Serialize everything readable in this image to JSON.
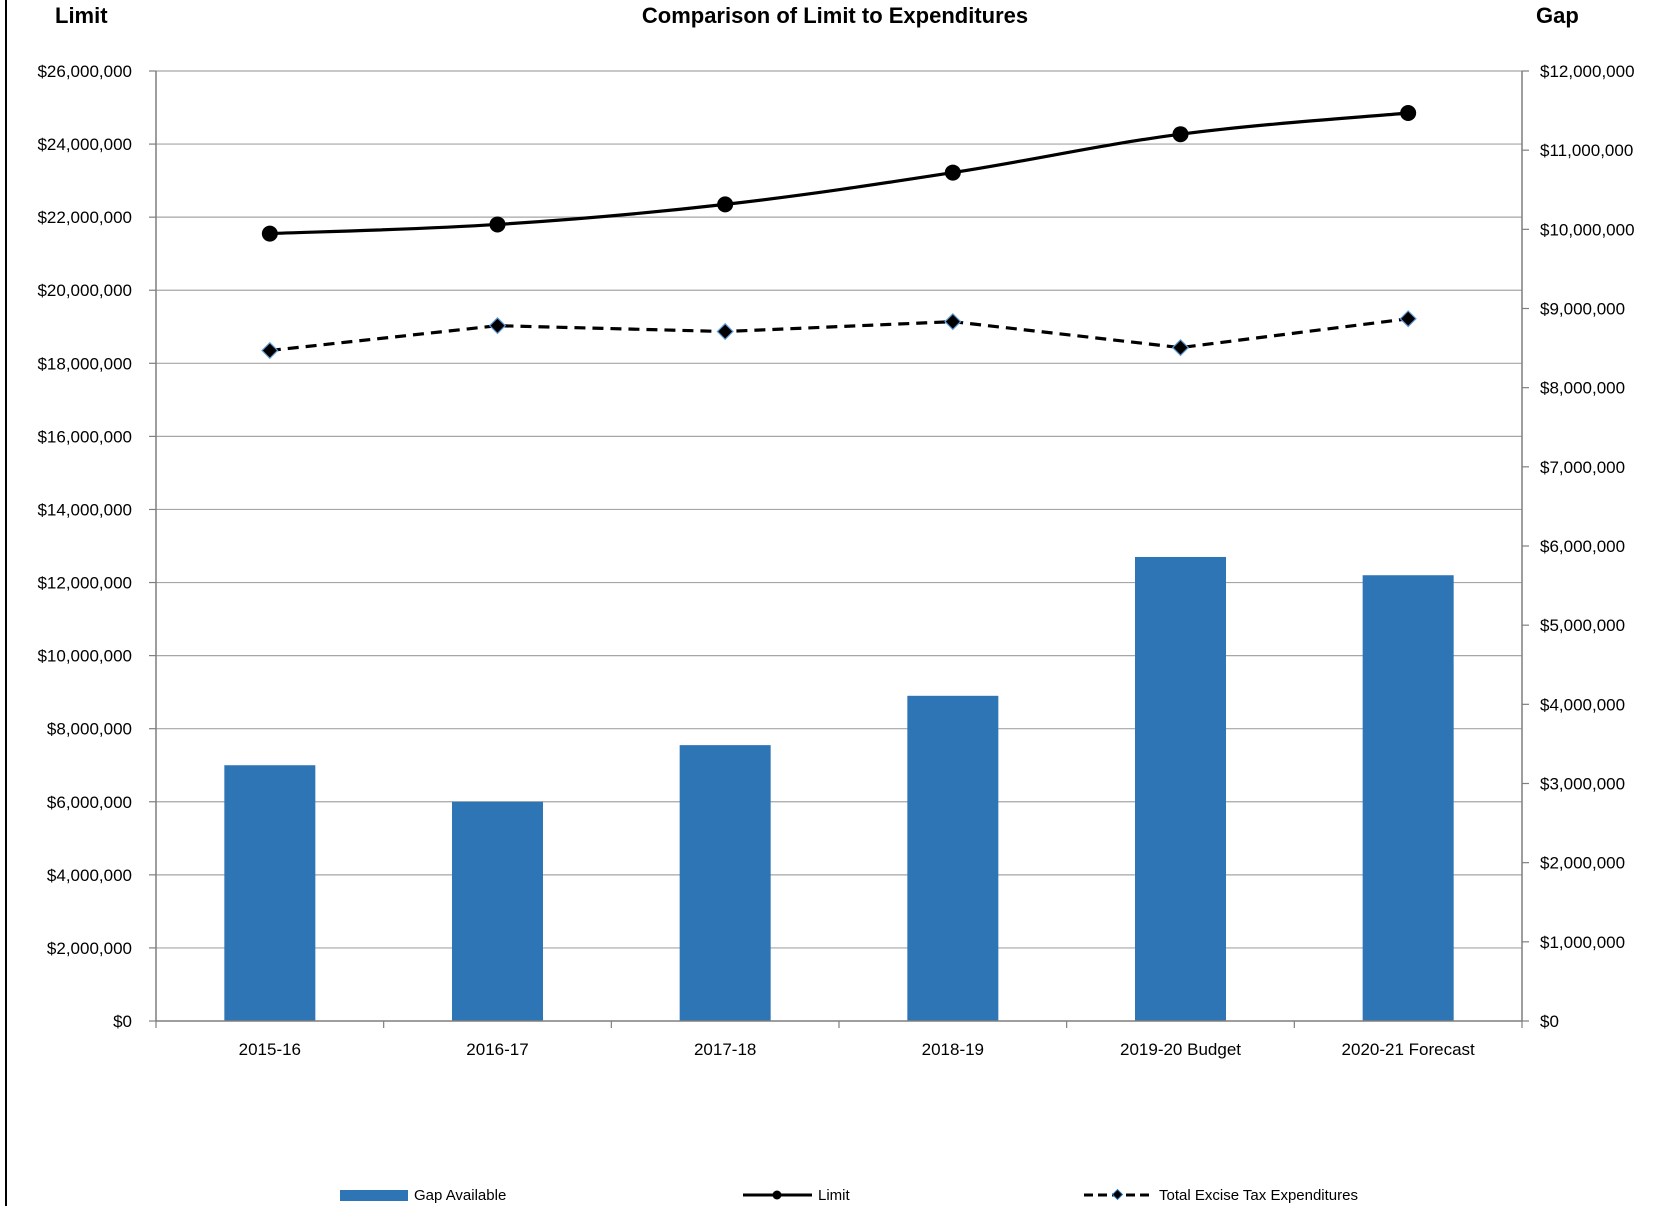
{
  "chart_data": {
    "type": "bar",
    "title": "Comparison of Limit to Expenditures",
    "left_axis_title": "Limit",
    "right_axis_title": "Gap",
    "categories": [
      "2015-16",
      "2016-17",
      "2017-18",
      "2018-19",
      "2019-20 Budget",
      "2020-21 Forecast"
    ],
    "left_ylim": [
      0,
      26000000
    ],
    "right_ylim": [
      0,
      12000000
    ],
    "left_ticks": [
      "$0",
      "$2,000,000",
      "$4,000,000",
      "$6,000,000",
      "$8,000,000",
      "$10,000,000",
      "$12,000,000",
      "$14,000,000",
      "$16,000,000",
      "$18,000,000",
      "$20,000,000",
      "$22,000,000",
      "$24,000,000",
      "$26,000,000"
    ],
    "right_ticks": [
      "$0",
      "$1,000,000",
      "$2,000,000",
      "$3,000,000",
      "$4,000,000",
      "$5,000,000",
      "$6,000,000",
      "$7,000,000",
      "$8,000,000",
      "$9,000,000",
      "$10,000,000",
      "$11,000,000",
      "$12,000,000"
    ],
    "grid": true,
    "legend_position": "bottom",
    "series": [
      {
        "name": "Gap Available",
        "type": "bar",
        "axis": "left",
        "color": "#2E75B6",
        "values": [
          7000000,
          6000000,
          7550000,
          8900000,
          12700000,
          12200000
        ]
      },
      {
        "name": "Limit",
        "type": "line",
        "axis": "left",
        "color": "#000000",
        "marker": "circle",
        "values": [
          21550000,
          21800000,
          22350000,
          23220000,
          24270000,
          24850000
        ]
      },
      {
        "name": "Total Excise Tax Expenditures",
        "type": "line",
        "axis": "left",
        "color": "#000000",
        "dash": "dashed",
        "marker": "diamond",
        "values": [
          18350000,
          19030000,
          18870000,
          19140000,
          18430000,
          19220000
        ]
      }
    ]
  }
}
